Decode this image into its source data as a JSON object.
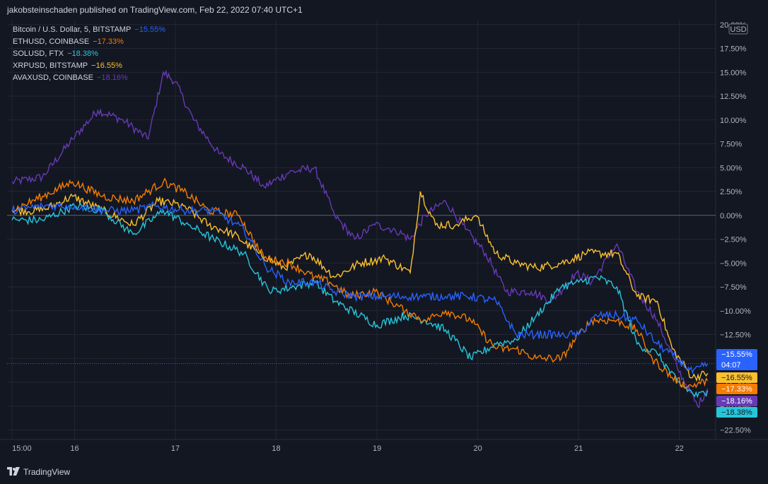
{
  "header": {
    "published": "jakobsteinschaden published on TradingView.com, Feb 22, 2022 07:40 UTC+1"
  },
  "footer": {
    "brand": "TradingView"
  },
  "colors": {
    "background": "#131722",
    "grid": "#242733",
    "text": "#b2b5be",
    "zero_line": "#5d606b"
  },
  "chart_data": {
    "type": "line",
    "currency_label": "USD",
    "y_tick_labels": [
      "20.00%",
      "17.50%",
      "15.00%",
      "12.50%",
      "10.00%",
      "7.50%",
      "5.00%",
      "2.50%",
      "0.00%",
      "−2.50%",
      "−5.00%",
      "−7.50%",
      "−10.00%",
      "−12.50%",
      "−15.00%",
      "−17.50%",
      "−20.00%",
      "−22.50%"
    ],
    "y_ticks": [
      20,
      17.5,
      15,
      12.5,
      10,
      7.5,
      5,
      2.5,
      0,
      -2.5,
      -5,
      -7.5,
      -10,
      -12.5,
      -15,
      -17.5,
      -20,
      -22.5
    ],
    "ylim": [
      -23.5,
      20.5
    ],
    "x_tick_labels": [
      "15:00",
      "16",
      "17",
      "18",
      "19",
      "20",
      "21",
      "22"
    ],
    "x_ticks": [
      0,
      0.62,
      1.62,
      2.62,
      3.62,
      4.62,
      5.62,
      6.62
    ],
    "xlim": [
      -0.05,
      6.98
    ],
    "x_unit": "days (Feb 15 00:00 = 0)",
    "countdown": "04:07",
    "series": [
      {
        "name": "Bitcoin / U.S. Dollar, 5, BITSTAMP",
        "last_label": "−15.55%",
        "color": "#2962ff",
        "x": [
          0,
          0.3,
          0.62,
          0.9,
          1.2,
          1.42,
          1.7,
          2.0,
          2.3,
          2.52,
          2.75,
          3.0,
          3.2,
          3.4,
          3.62,
          3.9,
          4.1,
          4.3,
          4.55,
          4.8,
          5.0,
          5.2,
          5.45,
          5.62,
          5.8,
          6.0,
          6.2,
          6.4,
          6.6,
          6.75,
          6.9
        ],
        "y": [
          0.5,
          1.0,
          1.0,
          0.5,
          0.5,
          1.0,
          0.5,
          0.5,
          -1.5,
          -5.5,
          -7.0,
          -7.0,
          -8.0,
          -8.5,
          -8.5,
          -8.5,
          -8.5,
          -8.5,
          -8.5,
          -9.0,
          -12.5,
          -12.5,
          -12.5,
          -12.5,
          -10.5,
          -10.5,
          -11.0,
          -13.5,
          -15.0,
          -16.5,
          -15.55
        ]
      },
      {
        "name": "ETHUSD, COINBASE",
        "last_label": "−17.33%",
        "color": "#f57c00",
        "x": [
          0,
          0.3,
          0.6,
          0.9,
          1.2,
          1.5,
          1.7,
          1.95,
          2.25,
          2.5,
          2.75,
          3.0,
          3.15,
          3.35,
          3.6,
          3.9,
          4.1,
          4.3,
          4.55,
          4.8,
          5.0,
          5.2,
          5.45,
          5.62,
          5.75,
          6.0,
          6.2,
          6.35,
          6.55,
          6.7,
          6.9
        ],
        "y": [
          0.5,
          2.0,
          3.5,
          2.0,
          1.5,
          3.5,
          2.5,
          0.5,
          0.0,
          -4.5,
          -5.0,
          -6.5,
          -7.0,
          -8.5,
          -8.0,
          -10.0,
          -11.0,
          -10.0,
          -11.0,
          -14.0,
          -14.0,
          -15.0,
          -15.0,
          -12.5,
          -11.0,
          -11.0,
          -12.0,
          -15.0,
          -17.0,
          -18.0,
          -17.33
        ]
      },
      {
        "name": "SOLUSD, FTX",
        "last_label": "−18.38%",
        "color": "#26c6da",
        "x": [
          0,
          0.3,
          0.62,
          0.9,
          1.2,
          1.5,
          1.75,
          2.0,
          2.3,
          2.55,
          2.8,
          3.0,
          3.2,
          3.45,
          3.62,
          3.9,
          4.1,
          4.3,
          4.55,
          4.8,
          5.0,
          5.2,
          5.45,
          5.62,
          5.8,
          6.0,
          6.2,
          6.4,
          6.6,
          6.8,
          6.9
        ],
        "y": [
          -0.5,
          -0.5,
          1.0,
          0.5,
          -2.0,
          0.5,
          -1.0,
          -2.5,
          -4.0,
          -8.0,
          -7.5,
          -7.0,
          -9.0,
          -10.5,
          -11.5,
          -10.5,
          -11.0,
          -12.0,
          -15.0,
          -13.5,
          -13.0,
          -10.5,
          -7.5,
          -7.0,
          -6.5,
          -7.5,
          -13.5,
          -14.5,
          -17.5,
          -19.0,
          -18.38
        ]
      },
      {
        "name": "XRPUSD, BITSTAMP",
        "last_label": "−16.55%",
        "color": "#fbc02d",
        "x": [
          0,
          0.3,
          0.6,
          0.9,
          1.2,
          1.45,
          1.7,
          1.95,
          2.2,
          2.45,
          2.7,
          2.95,
          3.2,
          3.45,
          3.7,
          3.95,
          4.05,
          4.2,
          4.4,
          4.6,
          4.8,
          5.0,
          5.2,
          5.45,
          5.7,
          6.0,
          6.2,
          6.4,
          6.55,
          6.75,
          6.9
        ],
        "y": [
          0.5,
          0.5,
          2.0,
          0.5,
          -1.0,
          1.5,
          1.0,
          -1.0,
          -2.0,
          -4.0,
          -5.5,
          -4.0,
          -6.5,
          -5.0,
          -4.5,
          -6.0,
          2.5,
          -1.0,
          -1.0,
          0.0,
          -4.0,
          -5.0,
          -5.5,
          -5.0,
          -4.0,
          -4.0,
          -8.5,
          -9.0,
          -14.0,
          -17.0,
          -16.55
        ]
      },
      {
        "name": "AVAXUSD, COINBASE",
        "last_label": "−18.16%",
        "color": "#673ab7",
        "x": [
          0,
          0.3,
          0.6,
          0.85,
          1.1,
          1.35,
          1.5,
          1.62,
          1.8,
          2.05,
          2.3,
          2.5,
          2.75,
          3.0,
          3.2,
          3.4,
          3.6,
          3.8,
          3.95,
          4.1,
          4.3,
          4.5,
          4.7,
          4.9,
          5.15,
          5.35,
          5.6,
          5.75,
          6.0,
          6.2,
          6.4,
          6.6,
          6.8,
          6.9
        ],
        "y": [
          3.5,
          4.0,
          8.0,
          11.0,
          10.0,
          8.0,
          15.0,
          14.0,
          10.0,
          6.5,
          5.0,
          3.0,
          4.5,
          5.0,
          0.0,
          -2.5,
          -1.0,
          -1.5,
          -2.5,
          0.0,
          1.5,
          -1.5,
          -4.0,
          -8.0,
          -8.0,
          -9.0,
          -6.0,
          -7.0,
          -3.0,
          -8.0,
          -11.0,
          -16.0,
          -20.0,
          -18.16
        ]
      }
    ]
  }
}
